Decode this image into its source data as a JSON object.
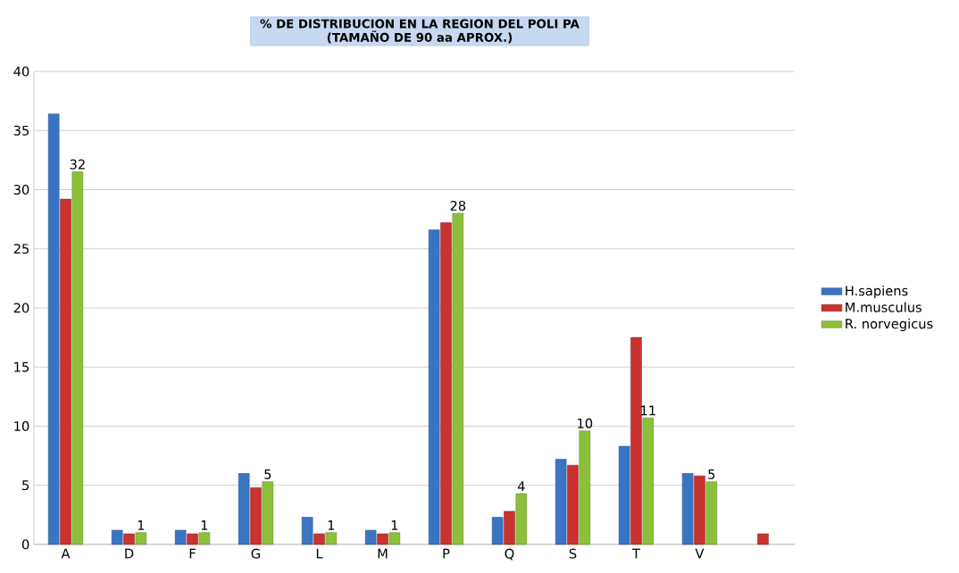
{
  "chart_data": {
    "type": "bar",
    "title": "% DE DISTRIBUCION EN LA REGION  DEL POLI PA",
    "subtitle": "(TAMAÑO DE 90 aa APROX.)",
    "categories": [
      "A",
      "D",
      "F",
      "G",
      "L",
      "M",
      "P",
      "Q",
      "S",
      "T",
      "V",
      null
    ],
    "series": [
      {
        "name": "H.sapiens",
        "color": "#3a75c4",
        "values": [
          36.4,
          1.2,
          1.2,
          6.0,
          2.3,
          1.2,
          26.6,
          2.3,
          7.2,
          8.3,
          6.0,
          null
        ]
      },
      {
        "name": "M.musculus",
        "color": "#c8322f",
        "values": [
          29.2,
          0.9,
          0.9,
          4.8,
          0.9,
          0.9,
          27.2,
          2.8,
          6.7,
          17.5,
          5.8,
          0.9
        ]
      },
      {
        "name": "R. norvegicus",
        "color": "#8cc03a",
        "values": [
          31.5,
          1.0,
          1.0,
          5.3,
          1.0,
          1.0,
          28.0,
          4.3,
          9.6,
          10.7,
          5.3,
          null
        ],
        "value_labels": [
          "32",
          "1",
          "1",
          "5",
          "1",
          "1",
          "28",
          "4",
          "10",
          "11",
          "5",
          null
        ]
      }
    ],
    "ylim": [
      0,
      40
    ],
    "yticks": [
      0,
      5,
      10,
      15,
      20,
      25,
      30,
      35,
      40
    ],
    "grid": "y",
    "legend": "right"
  }
}
